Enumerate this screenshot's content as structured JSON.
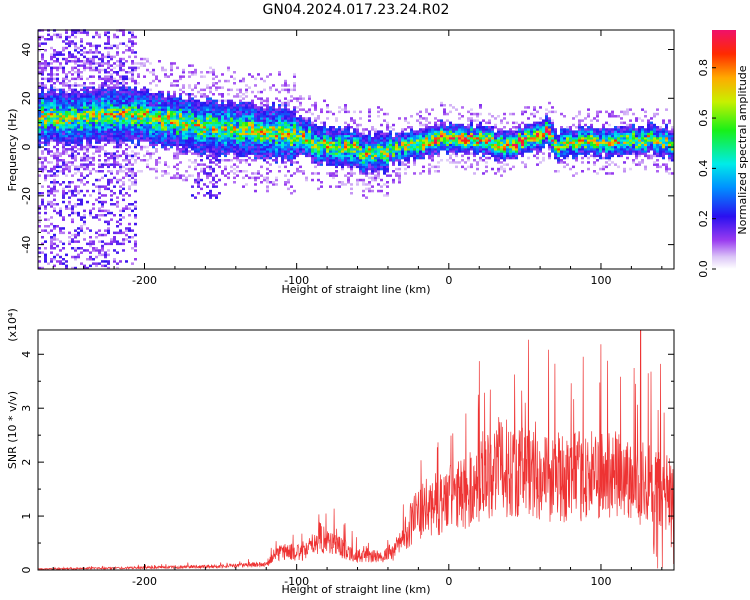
{
  "title": "GN04.2024.017.23.24.R02",
  "chart_data": [
    {
      "type": "heatmap",
      "xlabel": "Height of straight line (km)",
      "ylabel": "Frequency (Hz)",
      "xlim": [
        -270,
        148
      ],
      "ylim": [
        -50,
        48
      ],
      "xticks": [
        -200,
        -100,
        0,
        100
      ],
      "yticks": [
        -40,
        -20,
        0,
        20,
        40
      ],
      "colorbar": {
        "label": "Normalized spectral amplitude",
        "range": [
          0,
          0.95
        ],
        "ticks": [
          0.0,
          0.2,
          0.4,
          0.6,
          0.8
        ],
        "tick_labels": [
          "0.0",
          "0.2",
          "0.4",
          "0.6",
          "0.8"
        ],
        "colormap": "rainbow (white-violet-blue-cyan-green-yellow-red-magenta)"
      },
      "ridge_frequency_hz": [
        {
          "x": -260,
          "y": 12
        },
        {
          "x": -240,
          "y": 12
        },
        {
          "x": -220,
          "y": 13
        },
        {
          "x": -200,
          "y": 12
        },
        {
          "x": -180,
          "y": 10
        },
        {
          "x": -160,
          "y": 8
        },
        {
          "x": -140,
          "y": 7
        },
        {
          "x": -120,
          "y": 6
        },
        {
          "x": -100,
          "y": 4
        },
        {
          "x": -80,
          "y": 0
        },
        {
          "x": -60,
          "y": -2
        },
        {
          "x": -50,
          "y": -3
        },
        {
          "x": -30,
          "y": 0
        },
        {
          "x": -10,
          "y": 3
        },
        {
          "x": 10,
          "y": 4
        },
        {
          "x": 30,
          "y": 1
        },
        {
          "x": 50,
          "y": 2
        },
        {
          "x": 60,
          "y": 4
        },
        {
          "x": 65,
          "y": 6
        },
        {
          "x": 70,
          "y": 0
        },
        {
          "x": 90,
          "y": 2
        },
        {
          "x": 110,
          "y": 2
        },
        {
          "x": 130,
          "y": 3
        },
        {
          "x": 147,
          "y": 1
        }
      ]
    },
    {
      "type": "line",
      "xlabel": "Height of straight line (km)",
      "ylabel": "SNR (10 * v/v)",
      "y_multiplier": "(x10⁴)",
      "xlim": [
        -270,
        148
      ],
      "ylim": [
        0,
        4.45
      ],
      "xticks": [
        -200,
        -100,
        0,
        100
      ],
      "yticks": [
        0,
        1,
        2,
        3,
        4
      ],
      "line_color": "#ee3333",
      "envelope_snr_x1e4": [
        {
          "x": -270,
          "y": 0.02
        },
        {
          "x": -200,
          "y": 0.05
        },
        {
          "x": -150,
          "y": 0.08
        },
        {
          "x": -120,
          "y": 0.12
        },
        {
          "x": -110,
          "y": 0.4
        },
        {
          "x": -95,
          "y": 0.35
        },
        {
          "x": -85,
          "y": 0.7
        },
        {
          "x": -75,
          "y": 0.55
        },
        {
          "x": -60,
          "y": 0.3
        },
        {
          "x": -45,
          "y": 0.28
        },
        {
          "x": -35,
          "y": 0.4
        },
        {
          "x": -30,
          "y": 0.7
        },
        {
          "x": -25,
          "y": 1.0
        },
        {
          "x": -15,
          "y": 1.3
        },
        {
          "x": 0,
          "y": 1.5
        },
        {
          "x": 15,
          "y": 1.7
        },
        {
          "x": 30,
          "y": 2.2
        },
        {
          "x": 50,
          "y": 2.1
        },
        {
          "x": 70,
          "y": 1.9
        },
        {
          "x": 90,
          "y": 2.0
        },
        {
          "x": 110,
          "y": 2.0
        },
        {
          "x": 130,
          "y": 1.8
        },
        {
          "x": 147,
          "y": 1.6
        }
      ]
    }
  ]
}
